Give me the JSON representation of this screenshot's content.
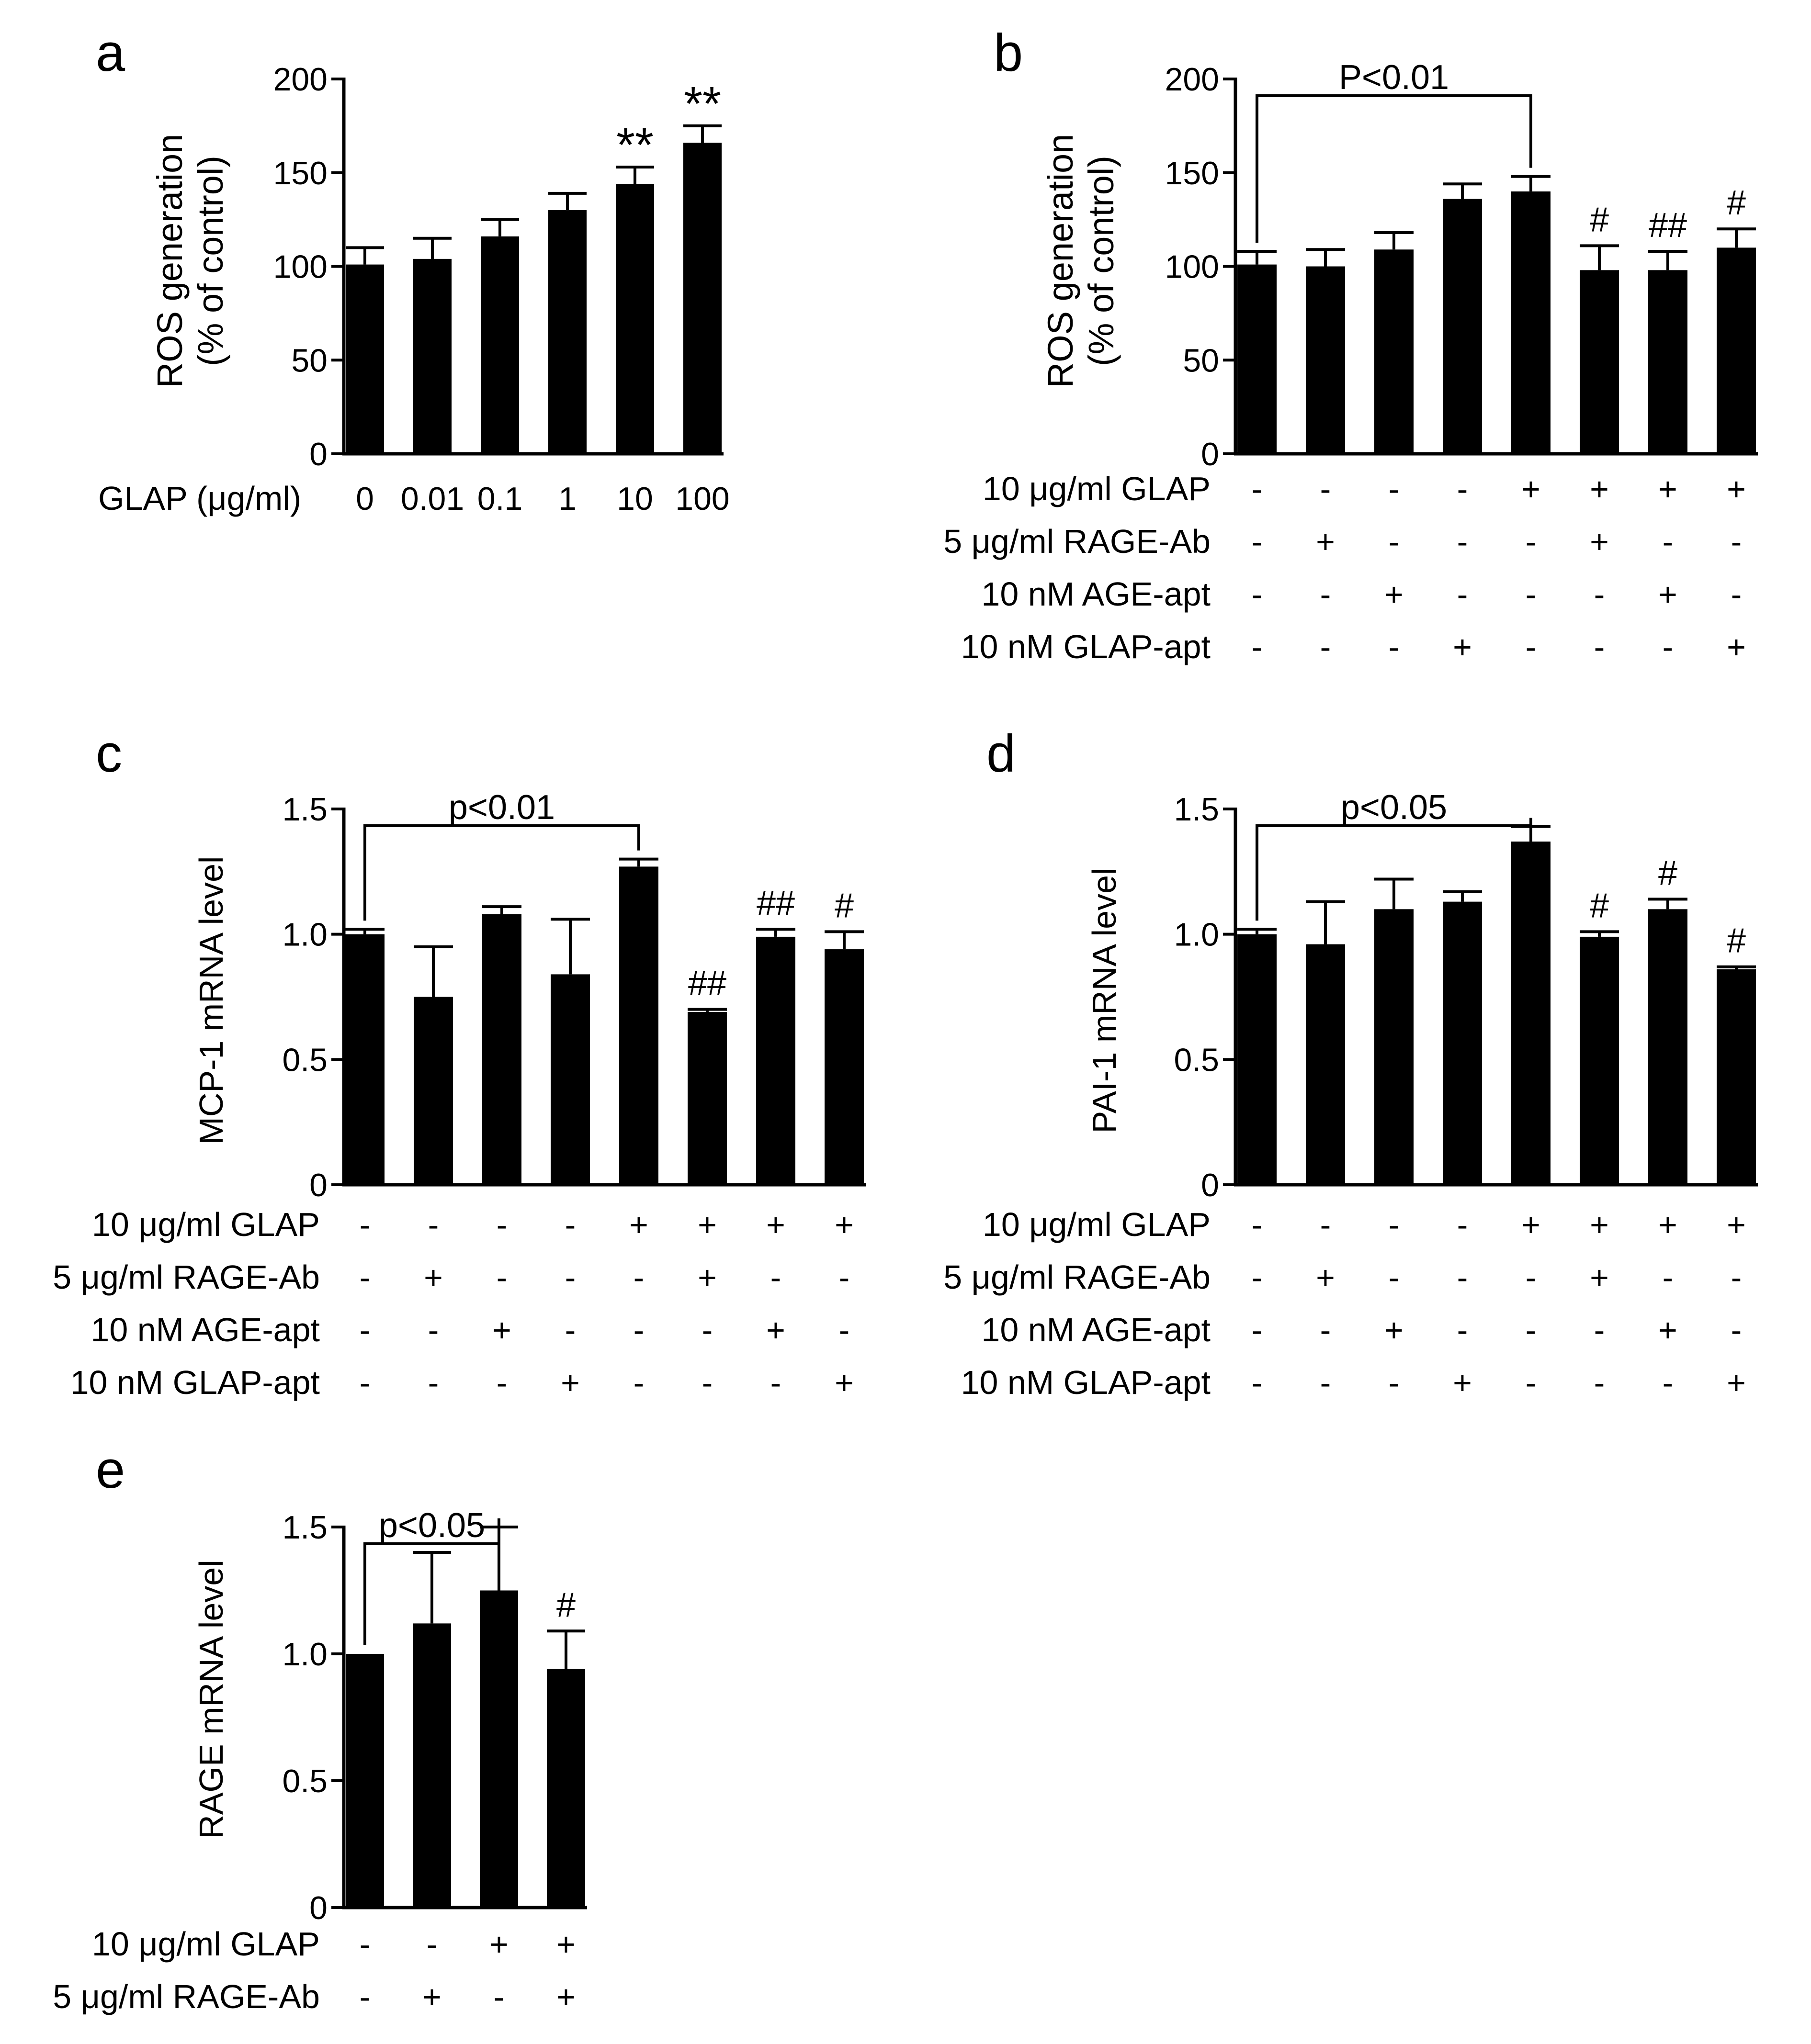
{
  "chart_data": [
    {
      "panel": "a",
      "type": "bar",
      "ylabel_lines": [
        "ROS generation",
        "(% of control)"
      ],
      "ylim": [
        0,
        200
      ],
      "yticks": [
        "0",
        "50",
        "100",
        "150",
        "200"
      ],
      "x_title": "GLAP (μg/ml)",
      "categories": [
        "0",
        "0.01",
        "0.1",
        "1",
        "10",
        "100"
      ],
      "values": [
        101,
        104,
        116,
        130,
        144,
        166
      ],
      "errors": [
        9,
        11,
        9,
        9,
        9,
        9
      ],
      "annotations": [
        "",
        "",
        "",
        "",
        "**",
        "**"
      ]
    },
    {
      "panel": "b",
      "type": "bar",
      "ylabel_lines": [
        "ROS generation",
        "(% of control)"
      ],
      "ylim": [
        0,
        200
      ],
      "yticks": [
        "0",
        "50",
        "100",
        "150",
        "200"
      ],
      "values": [
        101,
        100,
        109,
        136,
        140,
        98,
        98,
        110
      ],
      "errors": [
        7,
        9,
        9,
        8,
        8,
        13,
        10,
        10
      ],
      "annotations": [
        "",
        "",
        "",
        "",
        "",
        "#",
        "##",
        "#"
      ],
      "bracket": {
        "from": 0,
        "to": 4,
        "label": "P<0.01"
      },
      "treatment_rows": [
        {
          "label": "10 μg/ml GLAP",
          "signs": [
            "-",
            "-",
            "-",
            "-",
            "+",
            "+",
            "+",
            "+"
          ]
        },
        {
          "label": "5 μg/ml RAGE-Ab",
          "signs": [
            "-",
            "+",
            "-",
            "-",
            "-",
            "+",
            "-",
            "-"
          ]
        },
        {
          "label": "10 nM AGE-apt",
          "signs": [
            "-",
            "-",
            "+",
            "-",
            "-",
            "-",
            "+",
            "-"
          ]
        },
        {
          "label": "10 nM GLAP-apt",
          "signs": [
            "-",
            "-",
            "-",
            "+",
            "-",
            "-",
            "-",
            "+"
          ]
        }
      ]
    },
    {
      "panel": "c",
      "type": "bar",
      "ylabel_lines": [
        "MCP-1 mRNA level"
      ],
      "ylim": [
        0,
        1.5
      ],
      "yticks": [
        "0",
        "0.5",
        "1.0",
        "1.5"
      ],
      "values": [
        1.0,
        0.75,
        1.08,
        0.84,
        1.27,
        0.69,
        0.99,
        0.94
      ],
      "errors": [
        0.02,
        0.2,
        0.03,
        0.22,
        0.03,
        0.01,
        0.03,
        0.07
      ],
      "annotations": [
        "",
        "",
        "",
        "",
        "",
        "##",
        "##",
        "#"
      ],
      "bracket": {
        "from": 0,
        "to": 4,
        "label": "p<0.01"
      },
      "treatment_rows": [
        {
          "label": "10 μg/ml GLAP",
          "signs": [
            "-",
            "-",
            "-",
            "-",
            "+",
            "+",
            "+",
            "+"
          ]
        },
        {
          "label": "5 μg/ml RAGE-Ab",
          "signs": [
            "-",
            "+",
            "-",
            "-",
            "-",
            "+",
            "-",
            "-"
          ]
        },
        {
          "label": "10 nM AGE-apt",
          "signs": [
            "-",
            "-",
            "+",
            "-",
            "-",
            "-",
            "+",
            "-"
          ]
        },
        {
          "label": "10 nM GLAP-apt",
          "signs": [
            "-",
            "-",
            "-",
            "+",
            "-",
            "-",
            "-",
            "+"
          ]
        }
      ]
    },
    {
      "panel": "d",
      "type": "bar",
      "ylabel_lines": [
        "PAI-1 mRNA level"
      ],
      "ylim": [
        0,
        1.5
      ],
      "yticks": [
        "0",
        "0.5",
        "1.0",
        "1.5"
      ],
      "values": [
        1.0,
        0.96,
        1.1,
        1.13,
        1.37,
        0.99,
        1.1,
        0.86
      ],
      "errors": [
        0.02,
        0.17,
        0.12,
        0.04,
        0.06,
        0.02,
        0.04,
        0.01
      ],
      "annotations": [
        "",
        "",
        "",
        "",
        "",
        "#",
        "#",
        "#"
      ],
      "bracket": {
        "from": 0,
        "to": 4,
        "label": "p<0.05"
      },
      "treatment_rows": [
        {
          "label": "10 μg/ml GLAP",
          "signs": [
            "-",
            "-",
            "-",
            "-",
            "+",
            "+",
            "+",
            "+"
          ]
        },
        {
          "label": "5 μg/ml RAGE-Ab",
          "signs": [
            "-",
            "+",
            "-",
            "-",
            "-",
            "+",
            "-",
            "-"
          ]
        },
        {
          "label": "10 nM AGE-apt",
          "signs": [
            "-",
            "-",
            "+",
            "-",
            "-",
            "-",
            "+",
            "-"
          ]
        },
        {
          "label": "10 nM GLAP-apt",
          "signs": [
            "-",
            "-",
            "-",
            "+",
            "-",
            "-",
            "-",
            "+"
          ]
        }
      ]
    },
    {
      "panel": "e",
      "type": "bar",
      "ylabel_lines": [
        "RAGE mRNA level"
      ],
      "ylim": [
        0,
        1.5
      ],
      "yticks": [
        "0",
        "0.5",
        "1.0",
        "1.5"
      ],
      "values": [
        1.0,
        1.12,
        1.25,
        0.94
      ],
      "errors": [
        0.0,
        0.28,
        0.25,
        0.15
      ],
      "annotations": [
        "",
        "",
        "",
        "#"
      ],
      "bracket": {
        "from": 0,
        "to": 2,
        "label": "p<0.05"
      },
      "treatment_rows": [
        {
          "label": "10 μg/ml GLAP",
          "signs": [
            "-",
            "-",
            "+",
            "+"
          ]
        },
        {
          "label": "5 μg/ml RAGE-Ab",
          "signs": [
            "-",
            "+",
            "-",
            "+"
          ]
        }
      ]
    }
  ]
}
